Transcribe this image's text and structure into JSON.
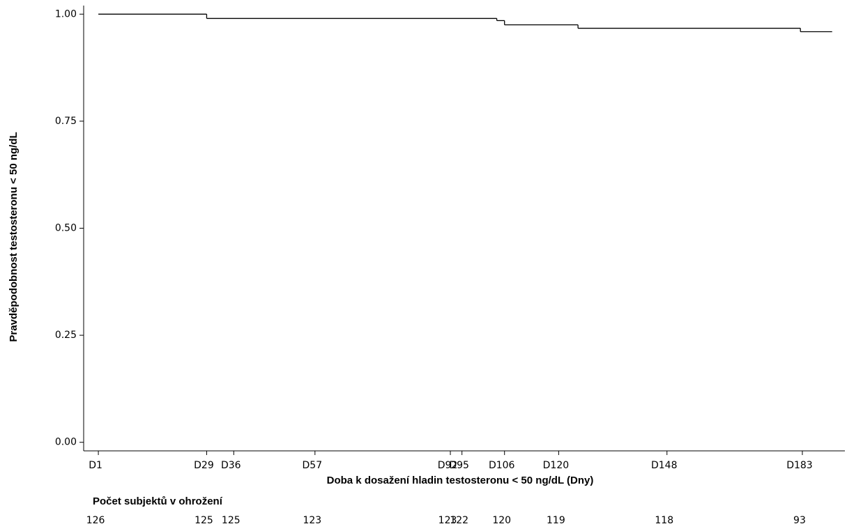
{
  "chart_data": {
    "type": "step",
    "x_label": "Doba k dosažení hladin testosteronu < 50 ng/dL (Dny)",
    "y_label": "Pravděpodobnost testosteronu < 50 ng/dL",
    "x": [
      1,
      29,
      104,
      106,
      125,
      182.5
    ],
    "x_end": 190.7,
    "values": [
      1.0,
      0.99,
      0.985,
      0.975,
      0.967,
      0.959
    ],
    "color": "#000000",
    "xlim": [
      -2.8,
      194
    ],
    "ylim": [
      -0.02,
      1.02
    ],
    "yticks": [
      {
        "value": 0,
        "label": "0.00"
      },
      {
        "value": 0.25,
        "label": "0.25"
      },
      {
        "value": 0.5,
        "label": "0.50"
      },
      {
        "value": 0.75,
        "label": "0.75"
      },
      {
        "value": 1,
        "label": "1.00"
      }
    ],
    "xticks": [
      {
        "value": 1,
        "label": "D1"
      },
      {
        "value": 29,
        "label": "D29"
      },
      {
        "value": 36,
        "label": "D36"
      },
      {
        "value": 57,
        "label": "D57"
      },
      {
        "value": 92,
        "label": "D92"
      },
      {
        "value": 95,
        "label": "D95"
      },
      {
        "value": 106,
        "label": "D106"
      },
      {
        "value": 120,
        "label": "D120"
      },
      {
        "value": 148,
        "label": "D148"
      },
      {
        "value": 183,
        "label": "D183"
      }
    ],
    "risk_table": {
      "title": "Počet subjektů v ohrožení",
      "values": [
        126,
        125,
        125,
        123,
        123,
        122,
        120,
        119,
        118,
        93
      ]
    }
  }
}
